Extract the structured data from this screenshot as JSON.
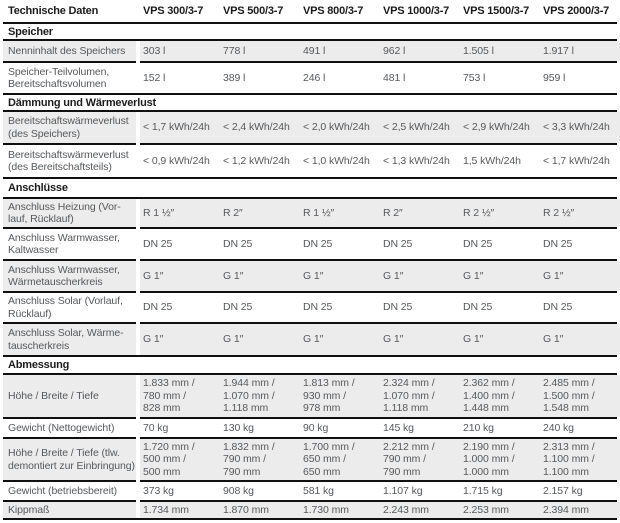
{
  "colors": {
    "row_shade": "#ececec",
    "rule_line": "#101010",
    "heading_text": "#1c1c1c",
    "body_text": "#56595c",
    "background": "#ffffff"
  },
  "table": {
    "title": "Technische Daten",
    "columns": [
      "VPS 300/3-7",
      "VPS 500/3-7",
      "VPS 800/3-7",
      "VPS 1000/3-7",
      "VPS 1500/3-7",
      "VPS 2000/3-7"
    ],
    "sections": [
      {
        "label": "Speicher",
        "rows": [
          {
            "label": "Nenninhalt des Speichers",
            "values": [
              "303 l",
              "778 l",
              "491 l",
              "962 l",
              "1.505 l",
              "1.917 l"
            ]
          },
          {
            "label": "Speicher-Teilvolumen,\nBereitschaftsvolumen",
            "values": [
              "152 l",
              "389 l",
              "246 l",
              "481 l",
              "753 l",
              "959 l"
            ]
          }
        ]
      },
      {
        "label": "Dämmung und Wärmeverlust",
        "rows": [
          {
            "label": "Bereitschaftswärmeverlust\n(des Speichers)",
            "values": [
              "< 1,7 kWh/24h",
              "< 2,4 kWh/24h",
              "< 2,0 kWh/24h",
              "< 2,5 kWh/24h",
              "< 2,9 kWh/24h",
              "< 3,3 kWh/24h"
            ]
          },
          {
            "label": "Bereitschaftswärmeverlust\n(des Bereitschaftsteils)",
            "values": [
              "< 0,9 kWh/24h",
              "< 1,2 kWh/24h",
              "< 1,0 kWh/24h",
              "< 1,3 kWh/24h",
              "1,5 kWh/24h",
              "< 1,7 kWh/24h"
            ]
          }
        ]
      },
      {
        "label": "Anschlüsse",
        "rows": [
          {
            "label": "Anschluss Heizung (Vor-\nlauf, Rücklauf)",
            "values": [
              "R 1 ½″",
              "R 2″",
              "R 1 ½″",
              "R 2″",
              "R 2 ½″",
              "R 2 ½″"
            ]
          },
          {
            "label": "Anschluss Warmwasser,\nKaltwasser",
            "values": [
              "DN 25",
              "DN 25",
              "DN 25",
              "DN 25",
              "DN 25",
              "DN 25"
            ]
          },
          {
            "label": "Anschluss Warmwasser,\nWärmetauscherkreis",
            "values": [
              "G 1″",
              "G 1″",
              "G 1″",
              "G 1″",
              "G 1″",
              "G 1″"
            ]
          },
          {
            "label": "Anschluss Solar (Vorlauf,\nRücklauf)",
            "values": [
              "DN 25",
              "DN 25",
              "DN 25",
              "DN 25",
              "DN 25",
              "DN 25"
            ]
          },
          {
            "label": "Anschluss Solar, Wärme-\ntauscherkreis",
            "values": [
              "G 1″",
              "G 1″",
              "G 1″",
              "G 1″",
              "G 1″",
              "G 1″"
            ]
          }
        ]
      },
      {
        "label": "Abmessung",
        "rows": [
          {
            "label": "Höhe / Breite / Tiefe",
            "values": [
              "1.833 mm /\n780 mm /\n828 mm",
              "1.944 mm /\n1.070 mm /\n1.118 mm",
              "1.813 mm /\n930 mm /\n978 mm",
              "2.324 mm /\n1.070 mm /\n1.118 mm",
              "2.362 mm /\n1.400 mm /\n1.448 mm",
              "2.485 mm /\n1.500 mm /\n1.548 mm"
            ]
          },
          {
            "label": "Gewicht (Nettogewicht)",
            "values": [
              "70 kg",
              "130 kg",
              "90 kg",
              "145 kg",
              "210 kg",
              "240 kg"
            ]
          },
          {
            "label": "Höhe / Breite / Tiefe (tlw.\ndemontiert zur Einbringung)",
            "values": [
              "1.720 mm /\n500 mm /\n500 mm",
              "1.832 mm /\n790 mm /\n790 mm",
              "1.700 mm /\n650 mm /\n650 mm",
              "2.212 mm /\n790 mm /\n790 mm",
              "2.190 mm /\n1.000 mm /\n1.000 mm",
              "2.313 mm /\n1.100 mm /\n1.100 mm"
            ]
          },
          {
            "label": "Gewicht (betriebsbereit)",
            "values": [
              "373 kg",
              "908 kg",
              "581 kg",
              "1.107 kg",
              "1.715 kg",
              "2.157 kg"
            ]
          },
          {
            "label": "Kippmaß",
            "values": [
              "1.734 mm",
              "1.870 mm",
              "1.730 mm",
              "2.243 mm",
              "2.253 mm",
              "2.394 mm"
            ]
          }
        ]
      }
    ]
  }
}
